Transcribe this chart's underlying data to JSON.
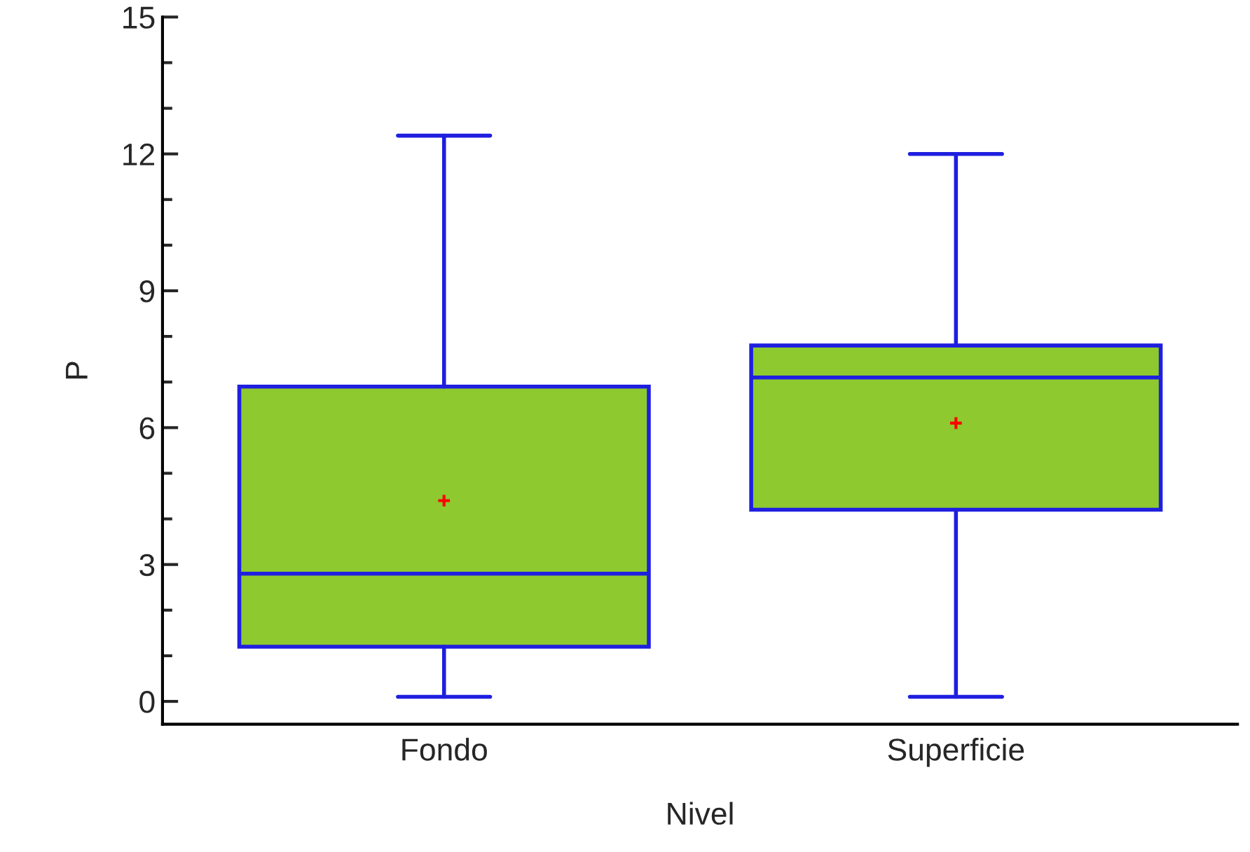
{
  "chart_data": {
    "type": "box",
    "xlabel": "Nivel",
    "ylabel": "P",
    "categories": [
      "Fondo",
      "Superficie"
    ],
    "boxes": [
      {
        "low": 0.1,
        "q1": 1.2,
        "median": 2.8,
        "q3": 6.9,
        "high": 12.4,
        "mean": 4.4
      },
      {
        "low": 0.1,
        "q1": 4.2,
        "median": 7.1,
        "q3": 7.8,
        "high": 12.0,
        "mean": 6.1
      }
    ],
    "color": "#8dc92f",
    "ylim": [
      -0.5,
      15
    ],
    "yticks": [
      0,
      3,
      6,
      9,
      12,
      15
    ],
    "grid": false,
    "legend": false
  }
}
